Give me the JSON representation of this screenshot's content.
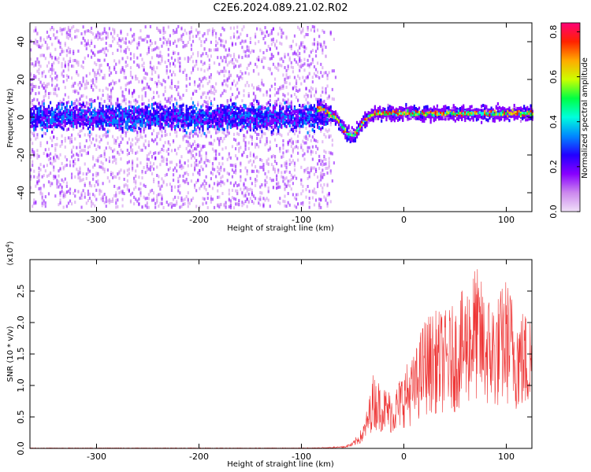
{
  "title": "C2E6.2024.089.21.02.R02",
  "colors": {
    "snr_line": "#ee3333",
    "colormap": [
      "#f0e0f8",
      "#cc88ee",
      "#8800ff",
      "#2200ff",
      "#0088ff",
      "#00ffdd",
      "#00ff44",
      "#ccff00",
      "#ffaa00",
      "#ff2200",
      "#ff0077"
    ]
  },
  "chart_data": [
    {
      "type": "heatmap",
      "name": "spectrogram",
      "xlabel": "Height of straight line (km)",
      "ylabel": "Frequency (Hz)",
      "xlim": [
        -365,
        125
      ],
      "ylim": [
        -50,
        50
      ],
      "x_ticks": [
        -300,
        -200,
        -100,
        0,
        100
      ],
      "x_tick_labels": [
        "-300",
        "-200",
        "-100",
        "0",
        "100"
      ],
      "y_ticks": [
        -40,
        -20,
        0,
        20,
        40
      ],
      "y_tick_labels": [
        "-40",
        "-20",
        "0",
        "20",
        "40"
      ],
      "colorbar": {
        "label": "Normalized spectral amplitude",
        "range": [
          0.0,
          0.84
        ],
        "ticks": [
          0.0,
          0.2,
          0.4,
          0.6,
          0.8
        ],
        "tick_labels": [
          "0.0",
          "0.2",
          "0.4",
          "0.6",
          "0.8"
        ]
      },
      "features": {
        "noise_region_x": [
          -365,
          -75
        ],
        "noise_band_hz": [
          -12,
          12
        ],
        "signal_region_x": [
          -85,
          125
        ],
        "signal_dip": {
          "x": -52,
          "frequency": -10
        },
        "signal_center_frequency": 2,
        "signal_peak_amplitude": 0.84
      }
    },
    {
      "type": "line",
      "name": "snr",
      "xlabel": "Height of straight line (km)",
      "ylabel": "SNR (10 * v/v)",
      "y_multiplier": "(x10",
      "y_multiplier_exp": "4",
      "y_multiplier_close": ")",
      "xlim": [
        -365,
        125
      ],
      "ylim": [
        0,
        3.0
      ],
      "x_ticks": [
        -300,
        -200,
        -100,
        0,
        100
      ],
      "x_tick_labels": [
        "-300",
        "-200",
        "-100",
        "0",
        "100"
      ],
      "y_ticks": [
        0.0,
        0.5,
        1.0,
        1.5,
        2.0,
        2.5
      ],
      "y_tick_labels": [
        "0.0",
        "0.5",
        "1.0",
        "1.5",
        "2.0",
        "2.5"
      ],
      "series": [
        {
          "x": [
            -365,
            -300,
            -200,
            -100,
            -80,
            -60,
            -50,
            -40,
            -35,
            -30,
            -20,
            -10,
            0,
            10,
            20,
            30,
            40,
            50,
            60,
            70,
            80,
            90,
            100,
            110,
            120
          ],
          "y": [
            0.0,
            0.0,
            0.0,
            0.0,
            0.01,
            0.03,
            0.1,
            0.35,
            0.7,
            1.2,
            1.0,
            0.9,
            1.3,
            1.5,
            2.1,
            2.2,
            2.2,
            2.3,
            2.6,
            2.95,
            2.5,
            2.4,
            2.75,
            2.3,
            2.2
          ]
        }
      ]
    }
  ]
}
